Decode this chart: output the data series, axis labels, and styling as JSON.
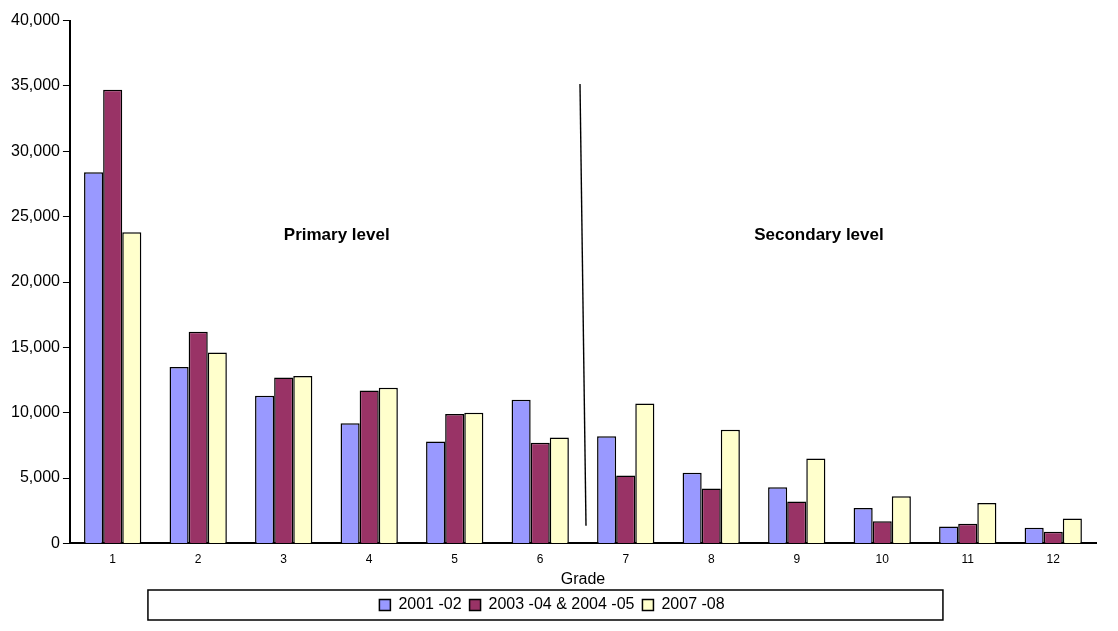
{
  "chart_data": {
    "type": "bar",
    "xlabel": "Grade",
    "categories": [
      "1",
      "2",
      "3",
      "4",
      "5",
      "6",
      "7",
      "8",
      "9",
      "10",
      "11",
      "12"
    ],
    "series": [
      {
        "name": "2001 -02",
        "color": "#9999ff",
        "values": [
          28400,
          13500,
          11300,
          9200,
          7800,
          11000,
          8200,
          5400,
          4300,
          2700,
          1300,
          1200
        ]
      },
      {
        "name": "2003 -04 & 2004 -05",
        "color": "#993366",
        "values": [
          34700,
          16200,
          12700,
          11700,
          9900,
          7700,
          5200,
          4200,
          3200,
          1700,
          1500,
          900
        ]
      },
      {
        "name": "2007 -08",
        "color": "#ffffcc",
        "values": [
          23800,
          14600,
          12800,
          11900,
          10000,
          8100,
          10700,
          8700,
          6500,
          3600,
          3100,
          1900
        ]
      }
    ],
    "ylim": [
      0,
      40000
    ],
    "yticks": [
      0,
      {
        "value": 5000,
        "label": "5,000"
      },
      {
        "value": 10000,
        "label": "10,000"
      },
      {
        "value": 15000,
        "label": "15,000"
      },
      {
        "value": 20000,
        "label": "20,000"
      },
      {
        "value": 25000,
        "label": "25,000"
      },
      {
        "value": 30000,
        "label": "30,000"
      },
      {
        "value": 35000,
        "label": "35,000"
      },
      {
        "value": 40000,
        "label": "40,000"
      }
    ],
    "grid": false,
    "legend": "bottom",
    "annotations": [
      "Primary level",
      "Secondary level"
    ]
  }
}
